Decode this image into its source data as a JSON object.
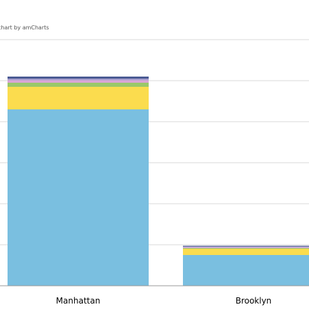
{
  "credit": "chart by amCharts",
  "chart_data": {
    "type": "bar",
    "stacked": true,
    "title": "",
    "xlabel": "",
    "ylabel": "",
    "categories": [
      "Manhattan",
      "Brooklyn"
    ],
    "ylim": [
      0,
      1300
    ],
    "grid": true,
    "series": [
      {
        "color": "#7abfe0",
        "values": [
          860,
          150
        ]
      },
      {
        "color": "#fbdc4e",
        "values": [
          110,
          30
        ]
      },
      {
        "color": "#9ac86a",
        "values": [
          20,
          4
        ]
      },
      {
        "color": "#dba6d6",
        "values": [
          12,
          4
        ]
      },
      {
        "color": "#a49ccc",
        "values": [
          8,
          3
        ]
      },
      {
        "color": "#4a5a93",
        "values": [
          10,
          4
        ]
      }
    ]
  }
}
